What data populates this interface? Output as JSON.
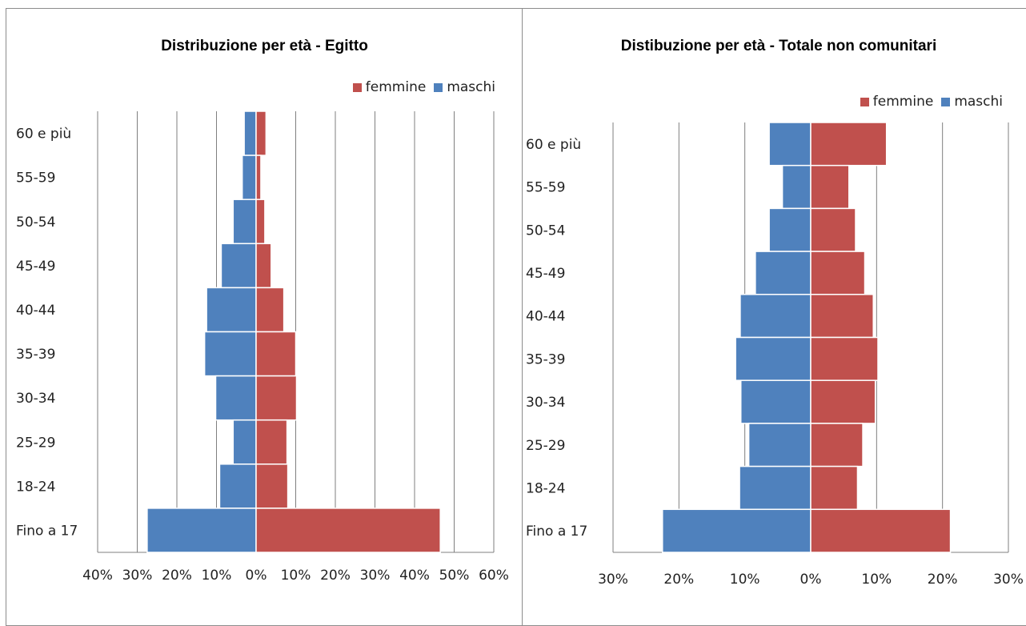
{
  "chart_data": [
    {
      "type": "bar",
      "orientation": "horizontal",
      "title": "Distribuzione per età - Egitto",
      "categories": [
        "60 e più",
        "55-59",
        "50-54",
        "45-49",
        "40-44",
        "35-39",
        "30-34",
        "25-29",
        "18-24",
        "Fino a 17"
      ],
      "series": [
        {
          "name": "femmine",
          "color": "#c0504d",
          "values": [
            2.5,
            1.2,
            2.2,
            3.8,
            7,
            10,
            10.2,
            7.8,
            8,
            46.5
          ]
        },
        {
          "name": "maschi",
          "color": "#4f81bd",
          "values": [
            3,
            3.5,
            5.8,
            8.8,
            12.5,
            13,
            10.2,
            5.8,
            9.2,
            27.5
          ]
        }
      ],
      "xlim": [
        -40,
        60
      ],
      "xticks": [
        "40%",
        "30%",
        "20%",
        "10%",
        "0%",
        "10%",
        "20%",
        "30%",
        "40%",
        "50%",
        "60%"
      ],
      "grid": true,
      "legend": "top-right"
    },
    {
      "type": "bar",
      "orientation": "horizontal",
      "title": "Distibuzione per età - Totale non comunitari",
      "categories": [
        "60 e più",
        "55-59",
        "50-54",
        "45-49",
        "40-44",
        "35-39",
        "30-34",
        "25-29",
        "18-24",
        "Fino a 17"
      ],
      "series": [
        {
          "name": "femmine",
          "color": "#c0504d",
          "values": [
            11.5,
            5.8,
            6.8,
            8.2,
            9.5,
            10.2,
            9.8,
            7.9,
            7.1,
            21.2
          ]
        },
        {
          "name": "maschi",
          "color": "#4f81bd",
          "values": [
            6.3,
            4.3,
            6.3,
            8.4,
            10.7,
            11.4,
            10.6,
            9.4,
            10.8,
            22.5
          ]
        }
      ],
      "xlim": [
        -30,
        30
      ],
      "xticks": [
        "30%",
        "20%",
        "10%",
        "0%",
        "10%",
        "20%",
        "30%"
      ],
      "grid": true,
      "legend": "top-right"
    }
  ]
}
